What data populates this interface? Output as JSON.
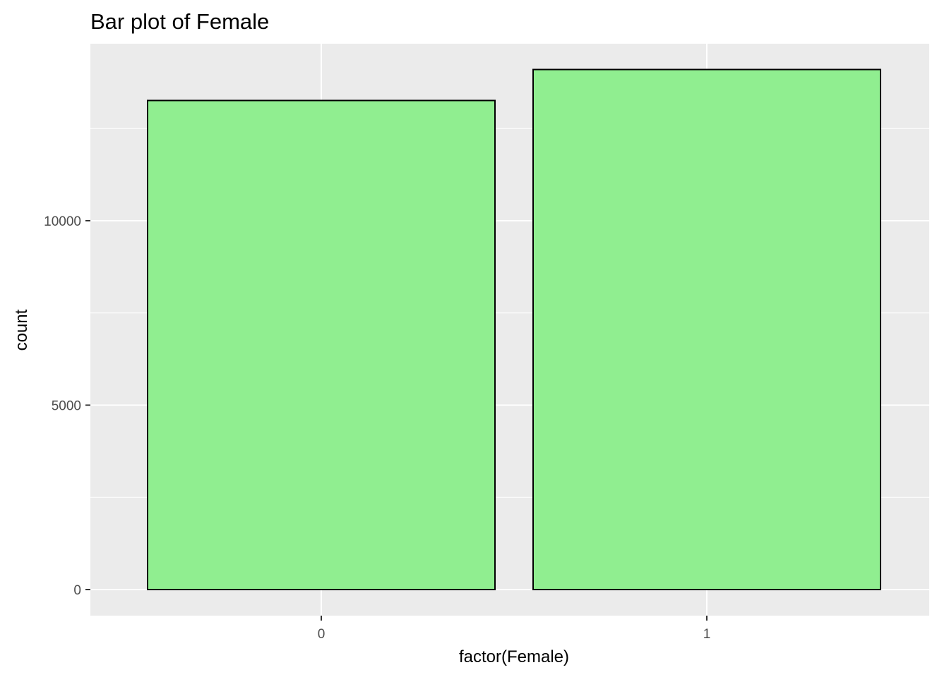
{
  "colors": {
    "panel_background": "#ebebeb",
    "grid": "#ffffff",
    "bar_fill": "#90ee90",
    "bar_outline": "#000000",
    "tick_text": "#4d4d4d",
    "tick_mark": "#333333"
  },
  "chart_data": {
    "type": "bar",
    "title": "Bar plot of Female",
    "xlabel": "factor(Female)",
    "ylabel": "count",
    "categories": [
      "0",
      "1"
    ],
    "values": [
      13260,
      14100
    ],
    "ylim": [
      0,
      15000
    ],
    "yticks": [
      0,
      5000,
      10000
    ],
    "ytick_labels": [
      "0",
      "5000",
      "10000"
    ],
    "grid": true,
    "legend": "none"
  }
}
